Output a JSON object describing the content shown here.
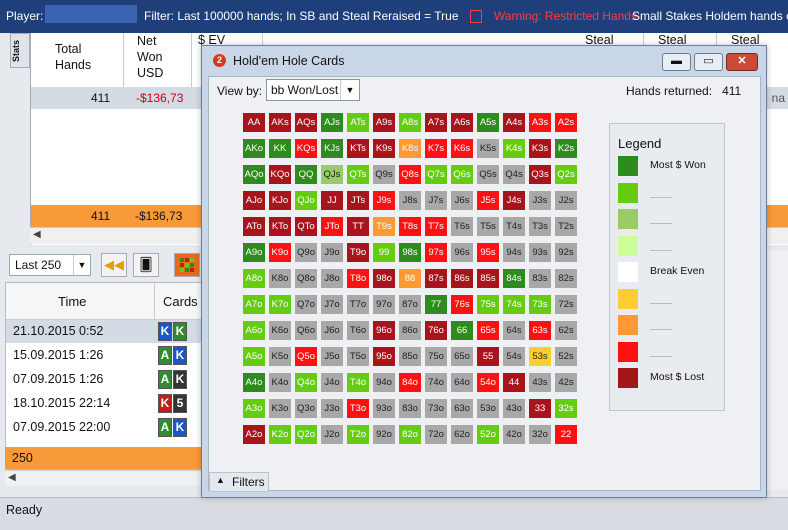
{
  "topbar": {
    "player_label": "Player:",
    "filter_text": "Filter: Last 100000 hands; In SB and Steal Reraised = True",
    "warning_text": "Warning: Restricted Hands",
    "stakes_text": "Small Stakes Holdem hands only"
  },
  "stats": {
    "tab_label": "Stats",
    "columns": [
      {
        "label": "Total\nHands"
      },
      {
        "label": "Net\nWon\nUSD"
      },
      {
        "label": "$ EV"
      },
      {
        "label": "Steal"
      },
      {
        "label": "Steal"
      },
      {
        "label": "Steal"
      }
    ],
    "summary_row": {
      "hands": "411",
      "net": "-$136,73",
      "right": "na"
    },
    "total_row": {
      "hands": "411",
      "net": "-$136,73"
    }
  },
  "toolbar": {
    "period": "Last 250"
  },
  "hands_list": {
    "time_header": "Time",
    "cards_header": "Cards",
    "rows": [
      {
        "time": "21.10.2015 0:52",
        "c1": "K",
        "c1color": "#1a56c8",
        "c2": "K",
        "c2color": "#2e8b2e"
      },
      {
        "time": "15.09.2015 1:26",
        "c1": "A",
        "c1color": "#2e8b2e",
        "c2": "K",
        "c2color": "#1a56c8"
      },
      {
        "time": "07.09.2015 1:26",
        "c1": "A",
        "c1color": "#2e8b2e",
        "c2": "K",
        "c2color": "#333333"
      },
      {
        "time": "18.10.2015 22:14",
        "c1": "K",
        "c1color": "#c41c1c",
        "c2": "5",
        "c2color": "#333333"
      },
      {
        "time": "07.09.2015 22:00",
        "c1": "A",
        "c1color": "#2e8b2e",
        "c2": "K",
        "c2color": "#1a56c8"
      }
    ],
    "total": "250"
  },
  "status": "Ready",
  "dialog": {
    "title": "Hold'em Hole Cards",
    "icon_label": "2",
    "view_by_label": "View by:",
    "view_by_value": "bb Won/Lost",
    "returned_label": "Hands returned:",
    "returned_value": "411",
    "filters_label": "Filters",
    "legend": {
      "title": "Legend",
      "items": [
        {
          "color": "#2e8b1e",
          "label": "Most $ Won"
        },
        {
          "color": "#66cc11",
          "label": ""
        },
        {
          "color": "#99cc66",
          "label": ""
        },
        {
          "color": "#ccff99",
          "label": ""
        },
        {
          "color": "#ffffff",
          "label": "Break Even"
        },
        {
          "color": "#ffcc33",
          "label": ""
        },
        {
          "color": "#ff9933",
          "label": ""
        },
        {
          "color": "#ff1111",
          "label": ""
        },
        {
          "color": "#a21818",
          "label": "Most $ Lost"
        }
      ]
    }
  },
  "matrix": {
    "cells": [
      [
        [
          "AA",
          "#a8141c"
        ],
        [
          "AKs",
          "#a8141c"
        ],
        [
          "AQs",
          "#a8141c"
        ],
        [
          "AJs",
          "#2e8b1e"
        ],
        [
          "ATs",
          "#66cc11"
        ],
        [
          "A9s",
          "#a8141c"
        ],
        [
          "A8s",
          "#66cc11"
        ],
        [
          "A7s",
          "#a8141c"
        ],
        [
          "A6s",
          "#a8141c"
        ],
        [
          "A5s",
          "#2e8b1e"
        ],
        [
          "A4s",
          "#a8141c"
        ],
        [
          "A3s",
          "#ff1111"
        ],
        [
          "A2s",
          "#ff1111"
        ]
      ],
      [
        [
          "AKo",
          "#2e8b1e"
        ],
        [
          "KK",
          "#2e8b1e"
        ],
        [
          "KQs",
          "#ff1111"
        ],
        [
          "KJs",
          "#2e8b1e"
        ],
        [
          "KTs",
          "#a8141c"
        ],
        [
          "K9s",
          "#a8141c"
        ],
        [
          "K8s",
          "#ff9933"
        ],
        [
          "K7s",
          "#ff1111"
        ],
        [
          "K6s",
          "#ff1111"
        ],
        [
          "K5s",
          "#a8a8a8"
        ],
        [
          "K4s",
          "#66cc11"
        ],
        [
          "K3s",
          "#a8141c"
        ],
        [
          "K2s",
          "#2e8b1e"
        ]
      ],
      [
        [
          "AQo",
          "#2e8b1e"
        ],
        [
          "KQo",
          "#a8141c"
        ],
        [
          "QQ",
          "#2e8b1e"
        ],
        [
          "QJs",
          "#99cc66"
        ],
        [
          "QTs",
          "#66cc11"
        ],
        [
          "Q9s",
          "#a8a8a8"
        ],
        [
          "Q8s",
          "#ff1111"
        ],
        [
          "Q7s",
          "#66cc11"
        ],
        [
          "Q6s",
          "#66cc11"
        ],
        [
          "Q5s",
          "#a8a8a8"
        ],
        [
          "Q4s",
          "#a8a8a8"
        ],
        [
          "Q3s",
          "#a8141c"
        ],
        [
          "Q2s",
          "#66cc11"
        ]
      ],
      [
        [
          "AJo",
          "#a8141c"
        ],
        [
          "KJo",
          "#a8141c"
        ],
        [
          "QJo",
          "#66cc11"
        ],
        [
          "JJ",
          "#a8141c"
        ],
        [
          "JTs",
          "#a8141c"
        ],
        [
          "J9s",
          "#ff1111"
        ],
        [
          "J8s",
          "#a8a8a8"
        ],
        [
          "J7s",
          "#a8a8a8"
        ],
        [
          "J6s",
          "#a8a8a8"
        ],
        [
          "J5s",
          "#ff1111"
        ],
        [
          "J4s",
          "#a8141c"
        ],
        [
          "J3s",
          "#a8a8a8"
        ],
        [
          "J2s",
          "#a8a8a8"
        ]
      ],
      [
        [
          "ATo",
          "#a8141c"
        ],
        [
          "KTo",
          "#a8141c"
        ],
        [
          "QTo",
          "#a8141c"
        ],
        [
          "JTo",
          "#ff1111"
        ],
        [
          "TT",
          "#a8141c"
        ],
        [
          "T9s",
          "#ff9933"
        ],
        [
          "T8s",
          "#ff1111"
        ],
        [
          "T7s",
          "#ff1111"
        ],
        [
          "T6s",
          "#a8a8a8"
        ],
        [
          "T5s",
          "#a8a8a8"
        ],
        [
          "T4s",
          "#a8a8a8"
        ],
        [
          "T3s",
          "#a8a8a8"
        ],
        [
          "T2s",
          "#a8a8a8"
        ]
      ],
      [
        [
          "A9o",
          "#2e8b1e"
        ],
        [
          "K9o",
          "#ff1111"
        ],
        [
          "Q9o",
          "#a8a8a8"
        ],
        [
          "J9o",
          "#a8a8a8"
        ],
        [
          "T9o",
          "#a8141c"
        ],
        [
          "99",
          "#66cc11"
        ],
        [
          "98s",
          "#2e8b1e"
        ],
        [
          "97s",
          "#ff1111"
        ],
        [
          "96s",
          "#a8a8a8"
        ],
        [
          "95s",
          "#ff1111"
        ],
        [
          "94s",
          "#a8a8a8"
        ],
        [
          "93s",
          "#a8a8a8"
        ],
        [
          "92s",
          "#a8a8a8"
        ]
      ],
      [
        [
          "A8o",
          "#66cc11"
        ],
        [
          "K8o",
          "#a8a8a8"
        ],
        [
          "Q8o",
          "#a8a8a8"
        ],
        [
          "J8o",
          "#a8a8a8"
        ],
        [
          "T8o",
          "#ff1111"
        ],
        [
          "98o",
          "#a8141c"
        ],
        [
          "88",
          "#ff9933"
        ],
        [
          "87s",
          "#a8141c"
        ],
        [
          "86s",
          "#a8141c"
        ],
        [
          "85s",
          "#a8141c"
        ],
        [
          "84s",
          "#2e8b1e"
        ],
        [
          "83s",
          "#a8a8a8"
        ],
        [
          "82s",
          "#a8a8a8"
        ]
      ],
      [
        [
          "A7o",
          "#66cc11"
        ],
        [
          "K7o",
          "#66cc11"
        ],
        [
          "Q7o",
          "#a8a8a8"
        ],
        [
          "J7o",
          "#a8a8a8"
        ],
        [
          "T7o",
          "#a8a8a8"
        ],
        [
          "97o",
          "#a8a8a8"
        ],
        [
          "87o",
          "#a8a8a8"
        ],
        [
          "77",
          "#2e8b1e"
        ],
        [
          "76s",
          "#ff1111"
        ],
        [
          "75s",
          "#66cc11"
        ],
        [
          "74s",
          "#66cc11"
        ],
        [
          "73s",
          "#66cc11"
        ],
        [
          "72s",
          "#a8a8a8"
        ]
      ],
      [
        [
          "A6o",
          "#66cc11"
        ],
        [
          "K6o",
          "#a8a8a8"
        ],
        [
          "Q6o",
          "#a8a8a8"
        ],
        [
          "J6o",
          "#a8a8a8"
        ],
        [
          "T6o",
          "#a8a8a8"
        ],
        [
          "96o",
          "#a8141c"
        ],
        [
          "86o",
          "#a8a8a8"
        ],
        [
          "76o",
          "#a8141c"
        ],
        [
          "66",
          "#2e8b1e"
        ],
        [
          "65s",
          "#ff1111"
        ],
        [
          "64s",
          "#a8a8a8"
        ],
        [
          "63s",
          "#ff1111"
        ],
        [
          "62s",
          "#a8a8a8"
        ]
      ],
      [
        [
          "A5o",
          "#66cc11"
        ],
        [
          "K5o",
          "#a8a8a8"
        ],
        [
          "Q5o",
          "#ff1111"
        ],
        [
          "J5o",
          "#a8a8a8"
        ],
        [
          "T5o",
          "#a8a8a8"
        ],
        [
          "95o",
          "#a8141c"
        ],
        [
          "85o",
          "#a8a8a8"
        ],
        [
          "75o",
          "#a8a8a8"
        ],
        [
          "65o",
          "#a8a8a8"
        ],
        [
          "55",
          "#a8141c"
        ],
        [
          "54s",
          "#a8a8a8"
        ],
        [
          "53s",
          "#ffcc33"
        ],
        [
          "52s",
          "#a8a8a8"
        ]
      ],
      [
        [
          "A4o",
          "#2e8b1e"
        ],
        [
          "K4o",
          "#a8a8a8"
        ],
        [
          "Q4o",
          "#66cc11"
        ],
        [
          "J4o",
          "#a8a8a8"
        ],
        [
          "T4o",
          "#66cc11"
        ],
        [
          "94o",
          "#a8a8a8"
        ],
        [
          "84o",
          "#ff1111"
        ],
        [
          "74o",
          "#a8a8a8"
        ],
        [
          "64o",
          "#a8a8a8"
        ],
        [
          "54o",
          "#ff1111"
        ],
        [
          "44",
          "#a8141c"
        ],
        [
          "43s",
          "#a8a8a8"
        ],
        [
          "42s",
          "#a8a8a8"
        ]
      ],
      [
        [
          "A3o",
          "#66cc11"
        ],
        [
          "K3o",
          "#a8a8a8"
        ],
        [
          "Q3o",
          "#a8a8a8"
        ],
        [
          "J3o",
          "#a8a8a8"
        ],
        [
          "T3o",
          "#ff1111"
        ],
        [
          "93o",
          "#a8a8a8"
        ],
        [
          "83o",
          "#a8a8a8"
        ],
        [
          "73o",
          "#a8a8a8"
        ],
        [
          "63o",
          "#a8a8a8"
        ],
        [
          "53o",
          "#a8a8a8"
        ],
        [
          "43o",
          "#a8a8a8"
        ],
        [
          "33",
          "#a8141c"
        ],
        [
          "32s",
          "#66cc11"
        ]
      ],
      [
        [
          "A2o",
          "#a8141c"
        ],
        [
          "K2o",
          "#66cc11"
        ],
        [
          "Q2o",
          "#66cc11"
        ],
        [
          "J2o",
          "#a8a8a8"
        ],
        [
          "T2o",
          "#66cc11"
        ],
        [
          "92o",
          "#a8a8a8"
        ],
        [
          "82o",
          "#66cc11"
        ],
        [
          "72o",
          "#a8a8a8"
        ],
        [
          "62o",
          "#a8a8a8"
        ],
        [
          "52o",
          "#66cc11"
        ],
        [
          "42o",
          "#a8a8a8"
        ],
        [
          "32o",
          "#a8a8a8"
        ],
        [
          "22",
          "#ff1111"
        ]
      ]
    ]
  }
}
